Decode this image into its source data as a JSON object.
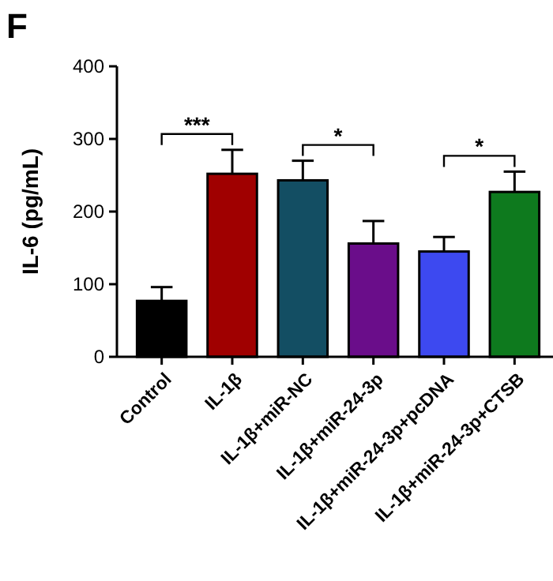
{
  "chart_data": {
    "type": "bar",
    "title": "F",
    "ylabel": "IL-6 (pg/mL)",
    "categories": [
      "Control",
      "IL-1β",
      "IL-1β+miR-NC",
      "IL-1β+miR-24-3p",
      "IL-1β+miR-24-3p+pcDNA",
      "IL-1β+miR-24-3p+CTSB"
    ],
    "values": [
      77,
      252,
      243,
      156,
      145,
      227
    ],
    "errors": [
      [
        77,
        96
      ],
      [
        252,
        285
      ],
      [
        243,
        270
      ],
      [
        156,
        187
      ],
      [
        145,
        165
      ],
      [
        227,
        255
      ]
    ],
    "colors": [
      "#000000",
      "#a00000",
      "#134e63",
      "#6a0d8a",
      "#3d49f0",
      "#0e7a1e"
    ],
    "ylim": [
      0,
      400
    ],
    "yticks": [
      0,
      100,
      200,
      300,
      400
    ],
    "grid": false,
    "annotations": [
      "***",
      "*",
      "*"
    ]
  }
}
